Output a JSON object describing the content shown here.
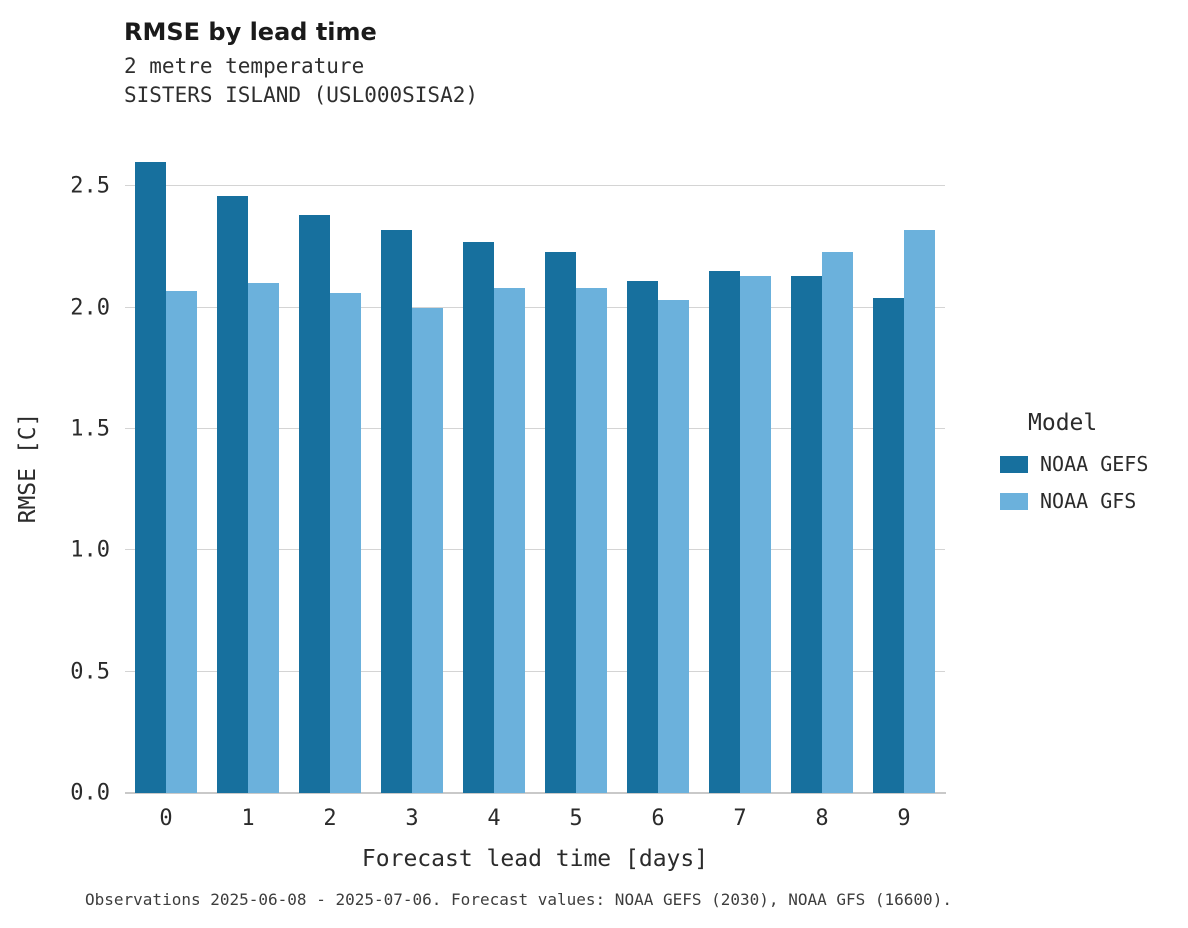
{
  "header": {
    "title": "RMSE by lead time",
    "subtitle_line1": "2 metre temperature",
    "subtitle_line2": "SISTERS ISLAND (USL000SISA2)"
  },
  "chart_data": {
    "type": "bar",
    "title": "RMSE by lead time",
    "subtitle": "2 metre temperature — SISTERS ISLAND (USL000SISA2)",
    "categories": [
      "0",
      "1",
      "2",
      "3",
      "4",
      "5",
      "6",
      "7",
      "8",
      "9"
    ],
    "series": [
      {
        "name": "NOAA GEFS",
        "color": "#17709e",
        "values": [
          2.6,
          2.46,
          2.38,
          2.32,
          2.27,
          2.23,
          2.11,
          2.15,
          2.13,
          2.04
        ]
      },
      {
        "name": "NOAA GFS",
        "color": "#6bb1dc",
        "values": [
          2.07,
          2.1,
          2.06,
          2.0,
          2.08,
          2.08,
          2.03,
          2.13,
          2.23,
          2.32
        ]
      }
    ],
    "xlabel": "Forecast lead time [days]",
    "ylabel": "RMSE [C]",
    "ylim": [
      0,
      2.69
    ],
    "yticks": [
      0.0,
      0.5,
      1.0,
      1.5,
      2.0,
      2.5
    ],
    "ytick_labels": [
      "0.0",
      "0.5",
      "1.0",
      "1.5",
      "2.0",
      "2.5"
    ],
    "grid": true,
    "legend": {
      "title": "Model",
      "position": "right"
    }
  },
  "footer": {
    "caption": "Observations 2025-06-08 - 2025-07-06. Forecast values: NOAA GEFS (2030), NOAA GFS (16600)."
  }
}
